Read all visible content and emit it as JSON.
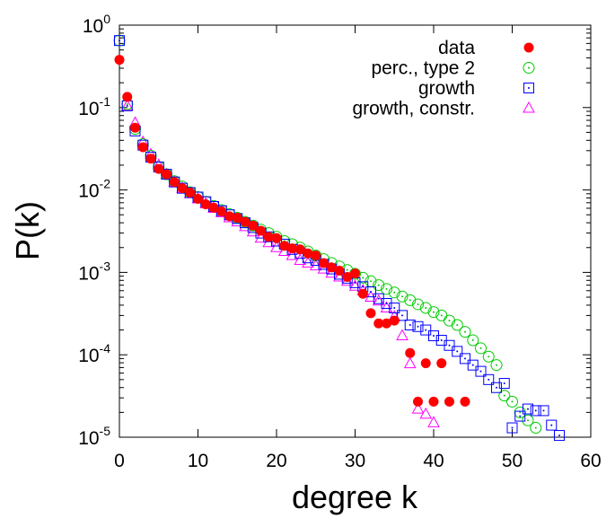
{
  "chart_data": {
    "type": "scatter",
    "xlabel": "degree k",
    "ylabel": "P(k)",
    "xlim": [
      0,
      60
    ],
    "ylim": [
      1e-05,
      1
    ],
    "y_scale": "log",
    "grid": false,
    "legend_position": "top-right",
    "x_ticks": [
      "0",
      "10",
      "20",
      "30",
      "40",
      "50",
      "60"
    ],
    "y_ticks": [
      {
        "base": "10",
        "exp": "-5"
      },
      {
        "base": "10",
        "exp": "-4"
      },
      {
        "base": "10",
        "exp": "-3"
      },
      {
        "base": "10",
        "exp": "-2"
      },
      {
        "base": "10",
        "exp": "-1"
      },
      {
        "base": "10",
        "exp": "0"
      }
    ],
    "series": [
      {
        "name": "data",
        "marker": "filled-circle",
        "color": "#ff0000",
        "points": [
          [
            0,
            0.38
          ],
          [
            1,
            0.135
          ],
          [
            2,
            0.057
          ],
          [
            3,
            0.033
          ],
          [
            4,
            0.024
          ],
          [
            5,
            0.018
          ],
          [
            6,
            0.0155
          ],
          [
            7,
            0.0125
          ],
          [
            8,
            0.0105
          ],
          [
            9,
            0.0093
          ],
          [
            10,
            0.0078
          ],
          [
            11,
            0.0067
          ],
          [
            12,
            0.0061
          ],
          [
            13,
            0.0055
          ],
          [
            14,
            0.0048
          ],
          [
            15,
            0.0046
          ],
          [
            16,
            0.0041
          ],
          [
            17,
            0.0037
          ],
          [
            18,
            0.0032
          ],
          [
            19,
            0.0027
          ],
          [
            20,
            0.0026
          ],
          [
            21,
            0.0021
          ],
          [
            22,
            0.00195
          ],
          [
            23,
            0.0019
          ],
          [
            24,
            0.0017
          ],
          [
            25,
            0.0016
          ],
          [
            26,
            0.0013
          ],
          [
            27,
            0.00115
          ],
          [
            28,
            0.00105
          ],
          [
            29,
            0.00088
          ],
          [
            30,
            0.00097
          ],
          [
            31,
            0.00055
          ],
          [
            32,
            0.00032
          ],
          [
            33,
            0.00024
          ],
          [
            34,
            0.00024
          ],
          [
            35,
            0.00026
          ],
          [
            37,
            0.000105
          ],
          [
            38,
            2.7e-05
          ],
          [
            39,
            7.9e-05
          ],
          [
            40,
            2.7e-05
          ],
          [
            41,
            7.9e-05
          ],
          [
            42,
            2.7e-05
          ],
          [
            44,
            2.7e-05
          ]
        ]
      },
      {
        "name": "perc., type 2",
        "marker": "dotted-circle",
        "color": "#00cc00",
        "points": [
          [
            0,
            0.65
          ],
          [
            1,
            0.11
          ],
          [
            2,
            0.055
          ],
          [
            3,
            0.036
          ],
          [
            4,
            0.026
          ],
          [
            5,
            0.019
          ],
          [
            6,
            0.0155
          ],
          [
            7,
            0.0128
          ],
          [
            8,
            0.011
          ],
          [
            9,
            0.0094
          ],
          [
            10,
            0.0082
          ],
          [
            11,
            0.0072
          ],
          [
            12,
            0.0064
          ],
          [
            13,
            0.0057
          ],
          [
            14,
            0.0051
          ],
          [
            15,
            0.0046
          ],
          [
            16,
            0.0041
          ],
          [
            17,
            0.0037
          ],
          [
            18,
            0.0033
          ],
          [
            19,
            0.003
          ],
          [
            20,
            0.0027
          ],
          [
            21,
            0.0024
          ],
          [
            22,
            0.0022
          ],
          [
            23,
            0.002
          ],
          [
            24,
            0.0018
          ],
          [
            25,
            0.0016
          ],
          [
            26,
            0.00145
          ],
          [
            27,
            0.0013
          ],
          [
            28,
            0.00118
          ],
          [
            29,
            0.00107
          ],
          [
            30,
            0.00096
          ],
          [
            31,
            0.00086
          ],
          [
            32,
            0.00078
          ],
          [
            33,
            0.0007
          ],
          [
            34,
            0.00063
          ],
          [
            35,
            0.00057
          ],
          [
            36,
            0.00051
          ],
          [
            37,
            0.00046
          ],
          [
            38,
            0.00041
          ],
          [
            39,
            0.00037
          ],
          [
            40,
            0.00033
          ],
          [
            41,
            0.0003
          ],
          [
            42,
            0.00026
          ],
          [
            43,
            0.00023
          ],
          [
            44,
            0.00019
          ],
          [
            45,
            0.00015
          ],
          [
            46,
            0.00012
          ],
          [
            47,
            9.5e-05
          ],
          [
            48,
            7.5e-05
          ],
          [
            49,
            3.2e-05
          ],
          [
            50,
            2.7e-05
          ],
          [
            51,
            2e-05
          ],
          [
            52,
            1.6e-05
          ],
          [
            53,
            1.3e-05
          ]
        ]
      },
      {
        "name": "growth",
        "marker": "dotted-square",
        "color": "#0000ff",
        "points": [
          [
            0,
            0.65
          ],
          [
            1,
            0.105
          ],
          [
            2,
            0.052
          ],
          [
            3,
            0.035
          ],
          [
            4,
            0.025
          ],
          [
            5,
            0.019
          ],
          [
            6,
            0.0155
          ],
          [
            7,
            0.0125
          ],
          [
            8,
            0.0105
          ],
          [
            9,
            0.0093
          ],
          [
            10,
            0.0082
          ],
          [
            11,
            0.0072
          ],
          [
            12,
            0.0063
          ],
          [
            13,
            0.0056
          ],
          [
            14,
            0.005
          ],
          [
            15,
            0.0045
          ],
          [
            16,
            0.004
          ],
          [
            17,
            0.0035
          ],
          [
            18,
            0.003
          ],
          [
            19,
            0.0027
          ],
          [
            20,
            0.0024
          ],
          [
            21,
            0.0022
          ],
          [
            22,
            0.0019
          ],
          [
            23,
            0.0017
          ],
          [
            24,
            0.0015
          ],
          [
            25,
            0.0014
          ],
          [
            26,
            0.00125
          ],
          [
            27,
            0.0011
          ],
          [
            28,
            0.00095
          ],
          [
            29,
            0.00085
          ],
          [
            30,
            0.00075
          ],
          [
            31,
            0.00067
          ],
          [
            32,
            0.00058
          ],
          [
            33,
            0.00048
          ],
          [
            34,
            0.00042
          ],
          [
            35,
            0.00037
          ],
          [
            36,
            0.0003
          ],
          [
            37,
            0.00023
          ],
          [
            38,
            0.00022
          ],
          [
            39,
            0.0002
          ],
          [
            40,
            0.00017
          ],
          [
            41,
            0.00015
          ],
          [
            42,
            0.00013
          ],
          [
            43,
            0.00011
          ],
          [
            44,
            9e-05
          ],
          [
            45,
            7.5e-05
          ],
          [
            46,
            6.3e-05
          ],
          [
            47,
            5e-05
          ],
          [
            48,
            4e-05
          ],
          [
            49,
            4.5e-05
          ],
          [
            50,
            1.3e-05
          ],
          [
            51,
            1.8e-05
          ],
          [
            52,
            2.2e-05
          ],
          [
            53,
            2.1e-05
          ],
          [
            54,
            2.1e-05
          ],
          [
            55,
            1.4e-05
          ],
          [
            56,
            1.05e-05
          ]
        ]
      },
      {
        "name": "growth, constr.",
        "marker": "triangle",
        "color": "#ff00ff",
        "points": [
          [
            1,
            0.105
          ],
          [
            2,
            0.065
          ],
          [
            3,
            0.038
          ],
          [
            4,
            0.027
          ],
          [
            5,
            0.02
          ],
          [
            6,
            0.0155
          ],
          [
            7,
            0.0125
          ],
          [
            8,
            0.0105
          ],
          [
            9,
            0.009
          ],
          [
            10,
            0.0078
          ],
          [
            11,
            0.0068
          ],
          [
            12,
            0.006
          ],
          [
            13,
            0.0053
          ],
          [
            14,
            0.0046
          ],
          [
            15,
            0.0041
          ],
          [
            16,
            0.0036
          ],
          [
            17,
            0.0031
          ],
          [
            18,
            0.0026
          ],
          [
            19,
            0.0023
          ],
          [
            20,
            0.002
          ],
          [
            21,
            0.0018
          ],
          [
            22,
            0.0016
          ],
          [
            23,
            0.0014
          ],
          [
            24,
            0.0013
          ],
          [
            25,
            0.0012
          ],
          [
            26,
            0.0011
          ],
          [
            27,
            0.00098
          ],
          [
            28,
            0.00088
          ],
          [
            29,
            0.00078
          ],
          [
            30,
            0.00068
          ],
          [
            31,
            0.0006
          ],
          [
            32,
            0.0005
          ],
          [
            33,
            0.00045
          ],
          [
            34,
            0.00037
          ],
          [
            35,
            0.00029
          ],
          [
            36,
            0.00017
          ],
          [
            37,
            7.8e-05
          ],
          [
            38,
            2.2e-05
          ],
          [
            39,
            1.9e-05
          ],
          [
            40,
            1.5e-05
          ]
        ]
      }
    ]
  }
}
